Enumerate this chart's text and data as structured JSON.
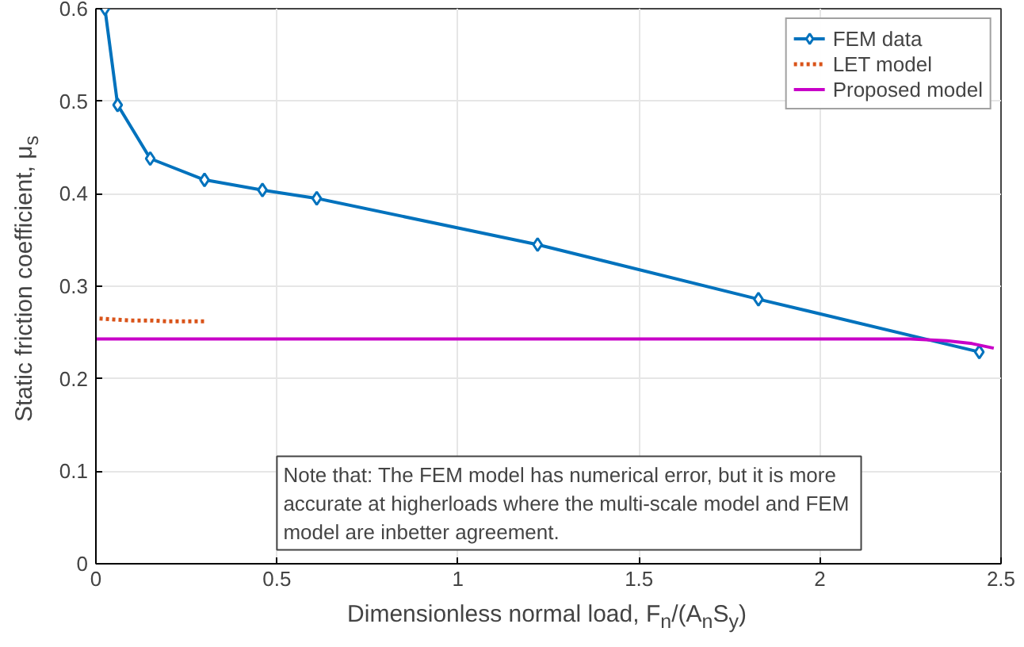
{
  "chart_data": {
    "type": "line",
    "xlabel": "Dimensionless normal load, F$_{n}$/(A$_{n}$S$_{y}$)",
    "ylabel": "Static friction coefficient, μ$_{s}$",
    "xlim": [
      0,
      2.5
    ],
    "ylim": [
      0,
      0.6
    ],
    "xticks": [
      0,
      0.5,
      1,
      1.5,
      2,
      2.5
    ],
    "yticks": [
      0,
      0.1,
      0.2,
      0.3,
      0.4,
      0.5,
      0.6
    ],
    "grid": true,
    "legend": "top right",
    "series": [
      {
        "name": "FEM data",
        "color": "#0072bd",
        "marker": "diamond",
        "line_style": "solid",
        "x": [
          0.025,
          0.06,
          0.15,
          0.3,
          0.46,
          0.61,
          1.22,
          1.83,
          2.44
        ],
        "values": [
          0.6,
          0.496,
          0.438,
          0.415,
          0.404,
          0.395,
          0.345,
          0.286,
          0.229
        ]
      },
      {
        "name": "LET model",
        "color": "#d95319",
        "marker": "none",
        "line_style": "dotted",
        "x": [
          0.01,
          0.05,
          0.1,
          0.15,
          0.2,
          0.25,
          0.3
        ],
        "values": [
          0.265,
          0.264,
          0.263,
          0.263,
          0.262,
          0.262,
          0.262
        ]
      },
      {
        "name": "Proposed model",
        "color": "#c800c8",
        "marker": "none",
        "line_style": "solid",
        "x": [
          0.0,
          0.5,
          1.0,
          1.5,
          2.0,
          2.25,
          2.35,
          2.42,
          2.48
        ],
        "values": [
          0.243,
          0.243,
          0.243,
          0.243,
          0.243,
          0.243,
          0.241,
          0.238,
          0.233
        ]
      }
    ],
    "annotations": [
      "Note that: The FEM model has numerical error, but it is more\naccurate at higherloads  where the multi-scale model and FEM\nmodel are inbetter agreement."
    ]
  }
}
